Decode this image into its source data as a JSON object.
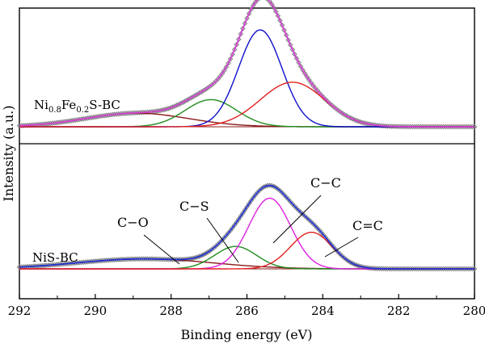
{
  "chart_data": {
    "type": "line",
    "xlabel": "Binding energy (eV)",
    "ylabel": "Intensity (a.u.)",
    "xlim": [
      292,
      280
    ],
    "x_reversed": true,
    "xticks": [
      "292",
      "290",
      "288",
      "286",
      "284",
      "282",
      "280"
    ],
    "grid": false,
    "panels": [
      {
        "label_main": "Ni",
        "label_sub1": "0.8",
        "label_mid": "Fe",
        "label_sub2": "0.2",
        "label_tail": "S-BC",
        "baseline_intensity": 0,
        "components": [
          {
            "assignment": "C-O",
            "color": "#8b1a1a",
            "center": 288.9,
            "fwhm": 3.2,
            "height": 0.14
          },
          {
            "assignment": "C-S",
            "color": "#1f8c1f",
            "center": 286.95,
            "fwhm": 1.6,
            "height": 0.28
          },
          {
            "assignment": "C-C",
            "color": "#1010cc",
            "center": 285.65,
            "fwhm": 1.35,
            "height": 1.0
          },
          {
            "assignment": "C=C",
            "color": "#e02020",
            "center": 284.8,
            "fwhm": 2.0,
            "height": 0.46
          }
        ],
        "envelope_color": "#d040d0",
        "raw_color": "#808080"
      },
      {
        "label_main": "NiS-BC",
        "baseline_intensity": 0,
        "components": [
          {
            "assignment": "C-O",
            "color": "#8b1a1a",
            "center": 288.7,
            "fwhm": 4.2,
            "height": 0.12
          },
          {
            "assignment": "C-S",
            "color": "#1f8c1f",
            "center": 286.3,
            "fwhm": 1.3,
            "height": 0.27
          },
          {
            "assignment": "C-C",
            "color": "#e020e0",
            "center": 285.4,
            "fwhm": 1.3,
            "height": 0.85
          },
          {
            "assignment": "C=C",
            "color": "#e02020",
            "center": 284.3,
            "fwhm": 1.3,
            "height": 0.44
          }
        ],
        "envelope_color": "#2030d0",
        "raw_color": "#808080"
      }
    ],
    "annotations": [
      {
        "text": "C−O",
        "points_to": 288.0
      },
      {
        "text": "C−S",
        "points_to": 286.3
      },
      {
        "text": "C−C",
        "points_to": 285.4
      },
      {
        "text": "C=C",
        "points_to": 284.2
      }
    ]
  }
}
